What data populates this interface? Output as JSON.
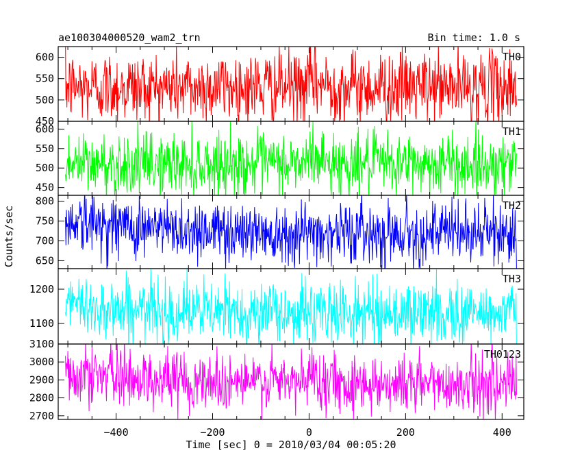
{
  "chart_data": {
    "type": "line",
    "title": "ae100304000520_wam2_trn",
    "subtitle": "Bin time: 1.0 s",
    "xlabel": "Time [sec] 0 = 2010/03/04 00:05:20",
    "ylabel": "Counts/sec",
    "xlim": [
      -520,
      445
    ],
    "x_ticks": [
      -400,
      -200,
      0,
      200,
      400
    ],
    "x_range": [
      -505,
      430
    ],
    "x_step": 1,
    "grid": false,
    "panels": [
      {
        "name": "TH0",
        "color": "#ff0000",
        "ylim": [
          450,
          625
        ],
        "y_ticks": [
          450,
          500,
          550,
          600
        ],
        "mean": 530,
        "noise": 42,
        "trend": "flat",
        "burst": 22
      },
      {
        "name": "TH1",
        "color": "#00ff00",
        "ylim": [
          430,
          620
        ],
        "y_ticks": [
          450,
          500,
          550,
          600
        ],
        "mean": 510,
        "noise": 40,
        "trend": "flat",
        "burst": 30
      },
      {
        "name": "TH2",
        "color": "#0000ff",
        "ylim": [
          630,
          815
        ],
        "y_ticks": [
          650,
          700,
          750,
          800
        ],
        "mean": 720,
        "noise": 38,
        "trend": "decay",
        "burst": 0
      },
      {
        "name": "TH3",
        "color": "#00ffff",
        "ylim": [
          1040,
          1260
        ],
        "y_ticks": [
          1100,
          1200
        ],
        "mean": 1130,
        "noise": 45,
        "trend": "decay-light",
        "burst": 0
      },
      {
        "name": "TH0123",
        "color": "#ff00ff",
        "ylim": [
          2680,
          3100
        ],
        "y_ticks": [
          2700,
          2800,
          2900,
          3000,
          3100
        ],
        "mean": 2880,
        "noise": 80,
        "trend": "decay",
        "burst": 70
      }
    ]
  }
}
